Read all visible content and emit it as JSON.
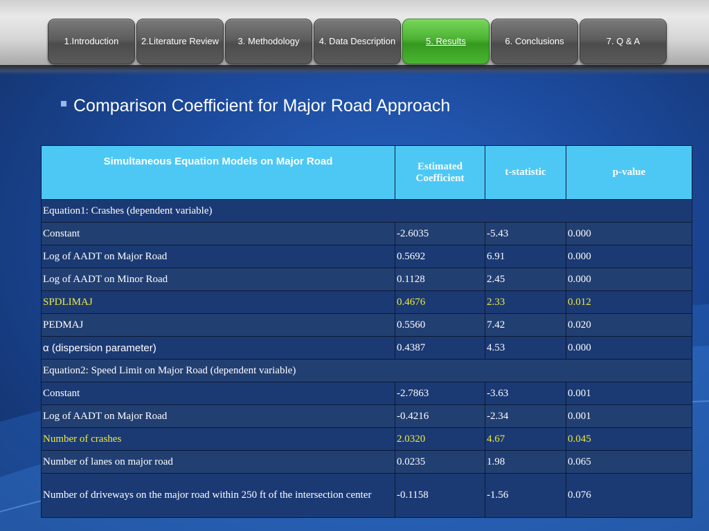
{
  "nav": {
    "tabs": [
      {
        "label": "1.Introduction"
      },
      {
        "label": "2.Literature Review"
      },
      {
        "label": "3. Methodology"
      },
      {
        "label": "4. Data Description"
      },
      {
        "label": "5. Results"
      },
      {
        "label": "6. Conclusions"
      },
      {
        "label": "7. Q & A"
      }
    ],
    "active_index": 4
  },
  "slide": {
    "heading": "Comparison Coefficient for Major Road Approach"
  },
  "table": {
    "headers": [
      "Simultaneous Equation Models on Major Road",
      "Estimated Coefficient",
      "t-statistic",
      "p-value"
    ],
    "rows": [
      {
        "label": "Equation1: Crashes (dependent variable)",
        "coef": "",
        "t": "",
        "p": ""
      },
      {
        "label": "Constant",
        "coef": "-2.6035",
        "t": "-5.43",
        "p": "0.000"
      },
      {
        "label": "Log of AADT on Major Road",
        "coef": "0.5692",
        "t": "6.91",
        "p": "0.000"
      },
      {
        "label": "Log of AADT on Minor Road",
        "coef": "0.1128",
        "t": "2.45",
        "p": "0.000"
      },
      {
        "label": "SPDLIMAJ",
        "coef": "0.4676",
        "t": "2.33",
        "p": "0.012"
      },
      {
        "label": "PEDMAJ",
        "coef": "0.5560",
        "t": "7.42",
        "p": "0.020"
      },
      {
        "label": "α (dispersion parameter)",
        "coef": "0.4387",
        "t": "4.53",
        "p": "0.000"
      },
      {
        "label": "Equation2: Speed Limit on Major Road (dependent variable)",
        "coef": "",
        "t": "",
        "p": ""
      },
      {
        "label": "Constant",
        "coef": "-2.7863",
        "t": "-3.63",
        "p": "0.001"
      },
      {
        "label": "Log of AADT on Major Road",
        "coef": "-0.4216",
        "t": "-2.34",
        "p": "0.001"
      },
      {
        "label": "Number of crashes",
        "coef": "2.0320",
        "t": "4.67",
        "p": "0.045"
      },
      {
        "label": "Number of lanes on major road",
        "coef": "0.0235",
        "t": "1.98",
        "p": "0.065"
      },
      {
        "label": "Number of driveways on the major road within 250 ft of the intersection center",
        "coef": "-0.1158",
        "t": "-1.56",
        "p": "0.076"
      }
    ]
  },
  "colors": {
    "header_bg": "#4dc8f5",
    "highlight_text": "#f0ea3a",
    "active_tab": "#4cb233",
    "slide_bg": "#1c4a9c"
  }
}
